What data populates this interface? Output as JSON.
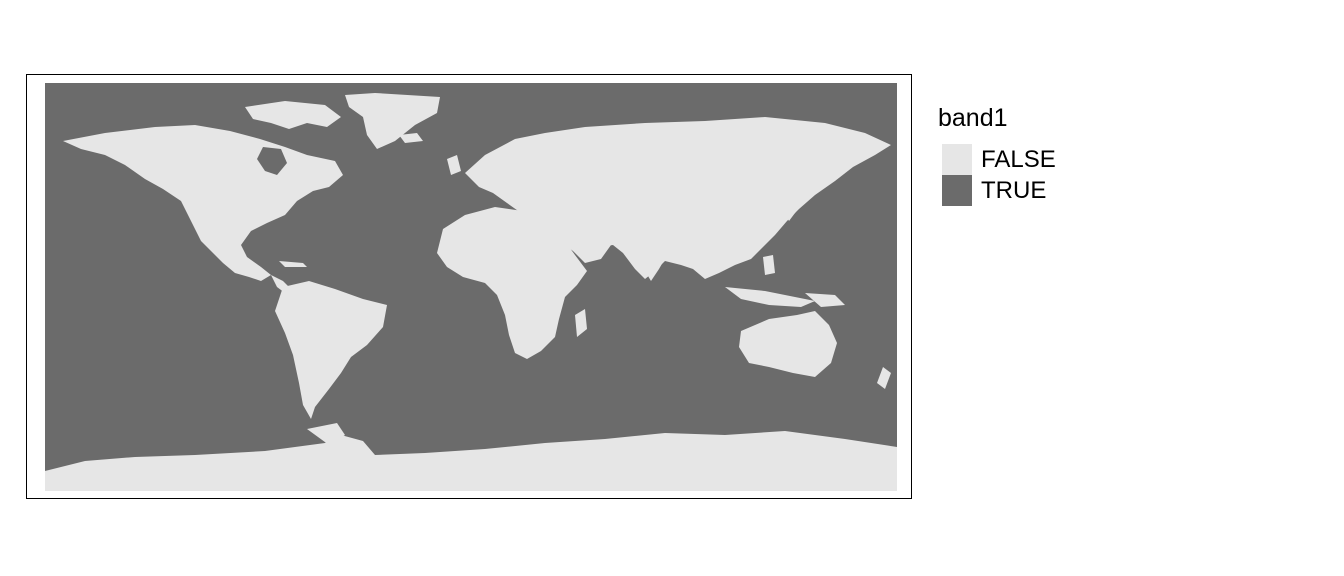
{
  "legend": {
    "title": "band1",
    "items": [
      {
        "label": "FALSE",
        "color": "#e6e6e6"
      },
      {
        "label": "TRUE",
        "color": "#6b6b6b"
      }
    ]
  },
  "colors": {
    "land": "#e6e6e6",
    "water": "#6b6b6b",
    "frame": "#000000"
  }
}
